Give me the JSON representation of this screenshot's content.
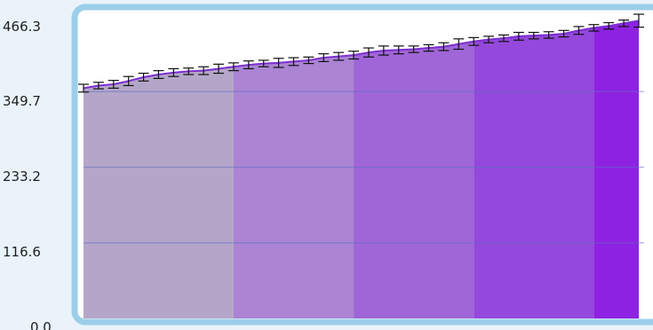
{
  "chart_data": {
    "type": "area",
    "title": "",
    "xlabel": "",
    "ylabel": "",
    "ylim": [
      0,
      466.3
    ],
    "yticks": [
      "0.0",
      "116.6",
      "233.2",
      "349.7",
      "466.3"
    ],
    "grid": true,
    "legend": "none",
    "error_bars": true,
    "band_colors": [
      "#b4a6c9",
      "#ab84d3",
      "#a066d7",
      "#9448dc",
      "#8e22e2"
    ],
    "band_breaks": [
      10,
      18,
      26,
      34
    ],
    "values": [
      355,
      359,
      361,
      366,
      372,
      376,
      379,
      381,
      382,
      385,
      388,
      391,
      393,
      394,
      396,
      398,
      402,
      404,
      406,
      410,
      413,
      414,
      415,
      417,
      419,
      423,
      427,
      430,
      432,
      435,
      436,
      437,
      439,
      444,
      448,
      451,
      455,
      459
    ],
    "errors": [
      6,
      5,
      6,
      7,
      6,
      6,
      6,
      5,
      6,
      7,
      6,
      6,
      5,
      7,
      6,
      5,
      6,
      6,
      6,
      7,
      7,
      6,
      5,
      5,
      6,
      8,
      6,
      5,
      5,
      6,
      5,
      5,
      5,
      6,
      5,
      5,
      5,
      10
    ]
  }
}
